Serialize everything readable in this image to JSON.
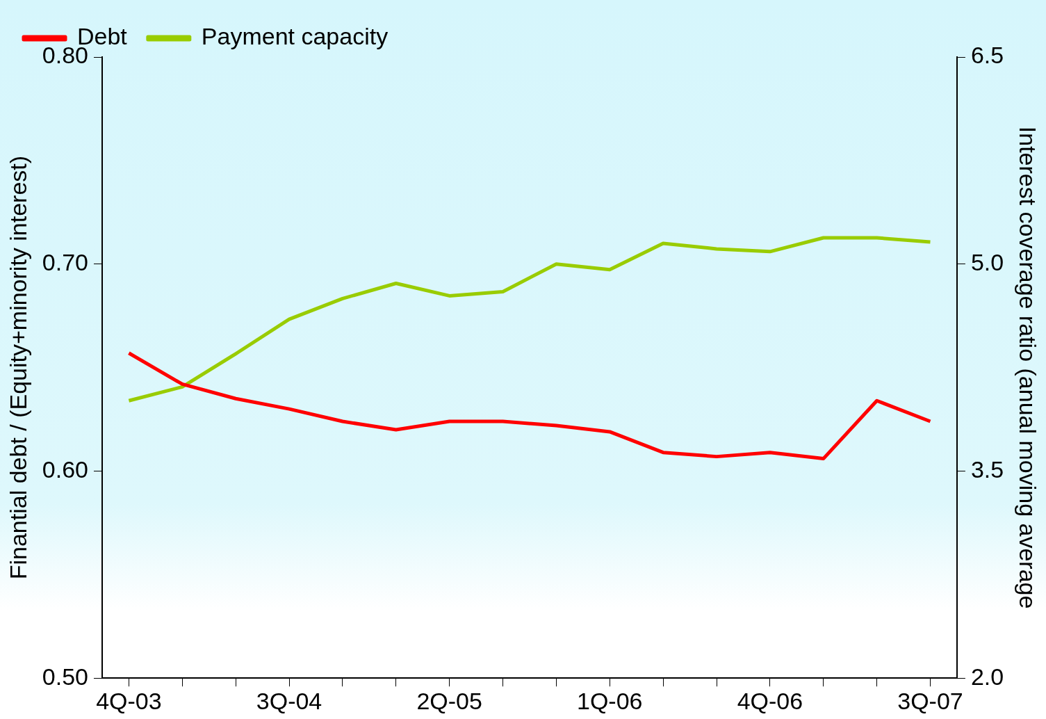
{
  "chart_data": {
    "type": "line",
    "categories": [
      "4Q-03",
      null,
      null,
      "3Q-04",
      null,
      null,
      "2Q-05",
      null,
      null,
      "1Q-06",
      null,
      null,
      "4Q-06",
      null,
      null,
      "3Q-07"
    ],
    "series": [
      {
        "name": "Debt",
        "color": "#ff0000",
        "values": [
          0.657,
          0.642,
          0.635,
          0.63,
          0.624,
          0.62,
          0.624,
          0.624,
          0.622,
          0.619,
          0.609,
          0.607,
          0.609,
          0.606,
          0.634,
          0.624
        ]
      },
      {
        "name": "Payment capacity",
        "color": "#99cc00",
        "axis": "y2",
        "values": [
          4.01,
          4.11,
          4.35,
          4.6,
          4.75,
          4.86,
          4.77,
          4.8,
          5.0,
          4.96,
          5.15,
          5.11,
          5.09,
          5.19,
          5.19,
          5.16
        ]
      }
    ],
    "ylabel": "Finantial debt / (Equity+minority interest)",
    "y2label": "Interest coverage ratio (anual moving average",
    "ylim": [
      0.5,
      0.8
    ],
    "yticks": [
      {
        "value": 0.5,
        "label": "0.50"
      },
      {
        "value": 0.6,
        "label": "0.60"
      },
      {
        "value": 0.7,
        "label": "0.70"
      },
      {
        "value": 0.8,
        "label": "0.80"
      }
    ],
    "y2lim": [
      2.0,
      6.5
    ],
    "y2ticks": [
      {
        "value": 2,
        "label": "2.0"
      },
      {
        "value": 3.5,
        "label": "3.5"
      },
      {
        "value": 5,
        "label": "5.0"
      },
      {
        "value": 6.5,
        "label": "6.5"
      }
    ],
    "legend": "top left",
    "grid": false,
    "marker": "none",
    "line_style": "solid"
  }
}
